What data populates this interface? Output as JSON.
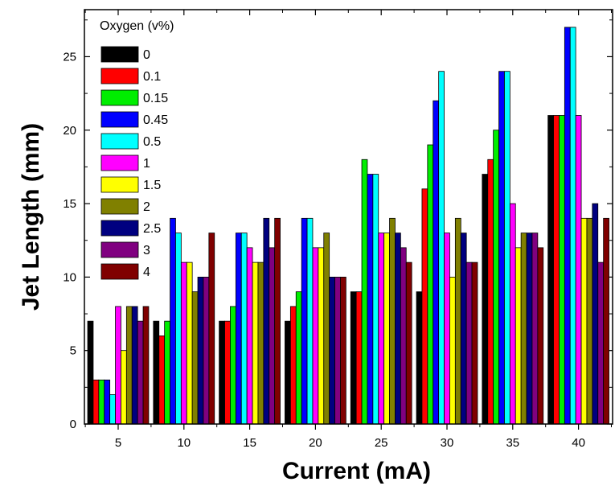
{
  "chart_data": {
    "type": "bar",
    "title": "",
    "xlabel": "Current (mA)",
    "ylabel": "Jet Length (mm)",
    "ylim": [
      0,
      28.2
    ],
    "yticks": [
      0,
      5,
      10,
      15,
      20,
      25
    ],
    "categories": [
      "5",
      "10",
      "15",
      "20",
      "25",
      "30",
      "35",
      "40"
    ],
    "legend_title": "Oxygen (v%)",
    "legend_position": "top-left",
    "series": [
      {
        "name": "0",
        "color": "#000000",
        "values": [
          7,
          7,
          7,
          7,
          9,
          9,
          17,
          21
        ]
      },
      {
        "name": "0.1",
        "color": "#ff0000",
        "values": [
          3,
          6,
          7,
          8,
          9,
          16,
          18,
          21
        ]
      },
      {
        "name": "0.15",
        "color": "#00ee00",
        "values": [
          3,
          7,
          8,
          9,
          18,
          19,
          20,
          21
        ]
      },
      {
        "name": "0.45",
        "color": "#0000ff",
        "values": [
          3,
          14,
          13,
          14,
          17,
          22,
          24,
          27
        ]
      },
      {
        "name": "0.5",
        "color": "#00ffff",
        "values": [
          2,
          13,
          13,
          14,
          17,
          24,
          24,
          27
        ]
      },
      {
        "name": "1",
        "color": "#ff00ff",
        "values": [
          8,
          11,
          12,
          12,
          13,
          13,
          15,
          21
        ]
      },
      {
        "name": "1.5",
        "color": "#ffff00",
        "values": [
          5,
          11,
          11,
          12,
          13,
          10,
          12,
          14
        ]
      },
      {
        "name": "2",
        "color": "#808000",
        "values": [
          8,
          9,
          11,
          13,
          14,
          14,
          13,
          14
        ]
      },
      {
        "name": "2.5",
        "color": "#000080",
        "values": [
          8,
          10,
          14,
          10,
          13,
          13,
          13,
          15
        ]
      },
      {
        "name": "3",
        "color": "#800080",
        "values": [
          7,
          10,
          12,
          10,
          12,
          11,
          13,
          11
        ]
      },
      {
        "name": "4",
        "color": "#800000",
        "values": [
          8,
          13,
          14,
          10,
          11,
          11,
          12,
          14
        ]
      }
    ]
  }
}
